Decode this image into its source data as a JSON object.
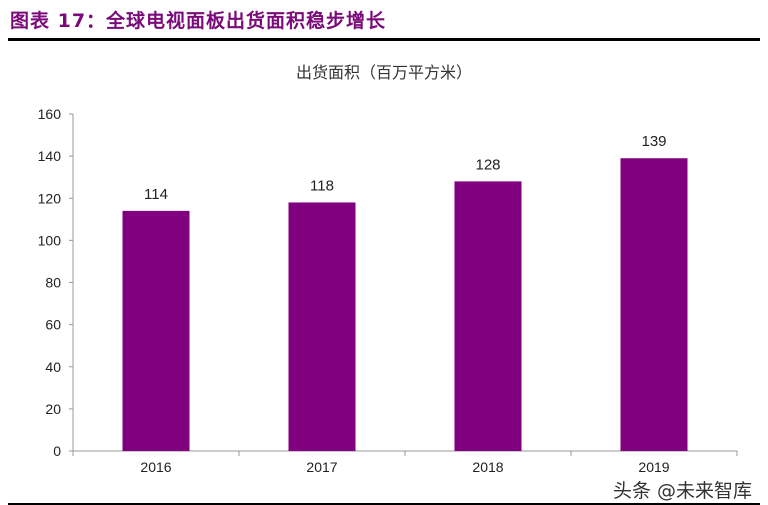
{
  "figure_title": "图表 17：全球电视面板出货面积稳步增长",
  "watermark": "头条 @未来智库",
  "chart_data": {
    "type": "bar",
    "title": "出货面积（百万平方米）",
    "categories": [
      "2016",
      "2017",
      "2018",
      "2019"
    ],
    "values": [
      114,
      118,
      128,
      139
    ],
    "ylim": [
      0,
      160
    ],
    "yticks": [
      0,
      20,
      40,
      60,
      80,
      100,
      120,
      140,
      160
    ],
    "grid": false,
    "bar_color": "#800080",
    "data_labels": true
  }
}
